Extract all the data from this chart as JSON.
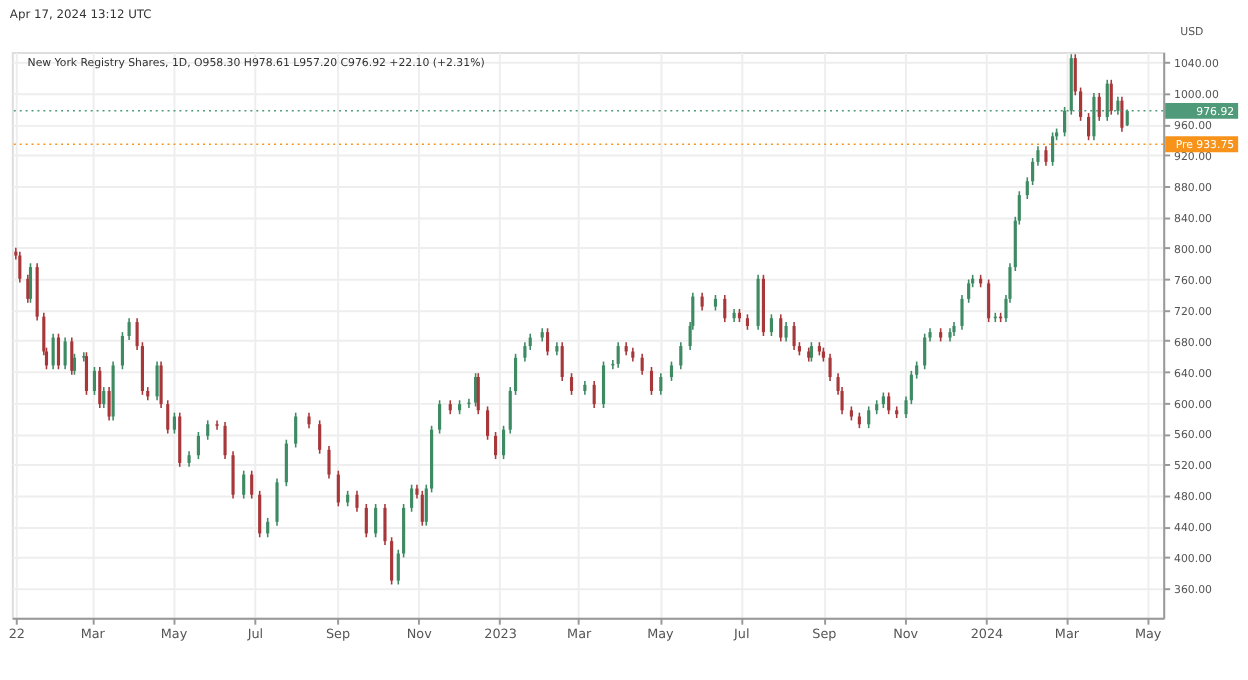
{
  "chart_data": {
    "type": "candlestick",
    "title": "New York Registry Shares, 1D, O958.30 H978.61 L957.20 C976.92 +22.10 (+2.31%)",
    "ylabel": "USD",
    "annotations": [
      "Apr 17, 2024 13:12 UTC"
    ],
    "x": [
      "2022-01-03",
      "2022-01-06",
      "2022-01-12",
      "2022-01-14",
      "2022-01-19",
      "2022-01-24",
      "2022-01-26",
      "2022-01-31",
      "2022-02-04",
      "2022-02-09",
      "2022-02-14",
      "2022-02-16",
      "2022-02-23",
      "2022-02-25",
      "2022-03-03",
      "2022-03-07",
      "2022-03-10",
      "2022-03-14",
      "2022-03-17",
      "2022-03-24",
      "2022-03-29",
      "2022-04-04",
      "2022-04-08",
      "2022-04-12",
      "2022-04-19",
      "2022-04-22",
      "2022-04-27",
      "2022-05-02",
      "2022-05-06",
      "2022-05-13",
      "2022-05-20",
      "2022-05-27",
      "2022-06-03",
      "2022-06-09",
      "2022-06-15",
      "2022-06-23",
      "2022-06-29",
      "2022-07-05",
      "2022-07-11",
      "2022-07-18",
      "2022-07-25",
      "2022-08-01",
      "2022-08-11",
      "2022-08-19",
      "2022-08-26",
      "2022-09-02",
      "2022-09-09",
      "2022-09-16",
      "2022-09-23",
      "2022-09-30",
      "2022-10-07",
      "2022-10-12",
      "2022-10-17",
      "2022-10-21",
      "2022-10-27",
      "2022-10-31",
      "2022-11-04",
      "2022-11-07",
      "2022-11-11",
      "2022-11-17",
      "2022-11-25",
      "2022-12-02",
      "2022-12-09",
      "2022-12-14",
      "2022-12-16",
      "2022-12-23",
      "2022-12-29",
      "2023-01-04",
      "2023-01-09",
      "2023-01-13",
      "2023-01-20",
      "2023-01-24",
      "2023-02-02",
      "2023-02-06",
      "2023-02-13",
      "2023-02-17",
      "2023-02-24",
      "2023-03-06",
      "2023-03-13",
      "2023-03-20",
      "2023-03-27",
      "2023-03-31",
      "2023-04-06",
      "2023-04-11",
      "2023-04-18",
      "2023-04-25",
      "2023-05-02",
      "2023-05-10",
      "2023-05-17",
      "2023-05-24",
      "2023-05-26",
      "2023-06-02",
      "2023-06-12",
      "2023-06-19",
      "2023-06-26",
      "2023-06-30",
      "2023-07-06",
      "2023-07-14",
      "2023-07-18",
      "2023-07-24",
      "2023-07-31",
      "2023-08-04",
      "2023-08-10",
      "2023-08-14",
      "2023-08-21",
      "2023-08-23",
      "2023-08-29",
      "2023-09-01",
      "2023-09-06",
      "2023-09-12",
      "2023-09-15",
      "2023-09-22",
      "2023-09-28",
      "2023-10-05",
      "2023-10-11",
      "2023-10-16",
      "2023-10-20",
      "2023-10-26",
      "2023-11-02",
      "2023-11-06",
      "2023-11-10",
      "2023-11-16",
      "2023-11-20",
      "2023-11-28",
      "2023-12-05",
      "2023-12-08",
      "2023-12-14",
      "2023-12-19",
      "2023-12-22",
      "2023-12-28",
      "2024-01-03",
      "2024-01-08",
      "2024-01-12",
      "2024-01-16",
      "2024-01-19",
      "2024-01-23",
      "2024-01-26",
      "2024-02-01",
      "2024-02-05",
      "2024-02-09",
      "2024-02-15",
      "2024-02-20",
      "2024-02-23",
      "2024-02-29",
      "2024-03-05",
      "2024-03-08",
      "2024-03-12",
      "2024-03-18",
      "2024-03-22",
      "2024-03-26",
      "2024-04-01",
      "2024-04-04",
      "2024-04-09",
      "2024-04-12",
      "2024-04-16"
    ],
    "ohlc": [
      [
        795,
        800,
        785,
        790
      ],
      [
        790,
        795,
        755,
        760
      ],
      [
        760,
        765,
        729,
        734
      ],
      [
        734,
        780,
        729,
        775
      ],
      [
        775,
        780,
        706,
        711
      ],
      [
        711,
        716,
        661,
        666
      ],
      [
        666,
        671,
        643,
        648
      ],
      [
        648,
        689,
        643,
        684
      ],
      [
        684,
        689,
        643,
        648
      ],
      [
        648,
        684,
        643,
        679
      ],
      [
        679,
        684,
        636,
        641
      ],
      [
        641,
        663,
        636,
        658
      ],
      [
        658,
        665,
        653,
        660
      ],
      [
        660,
        665,
        610,
        615
      ],
      [
        615,
        646,
        610,
        641
      ],
      [
        641,
        646,
        593,
        598
      ],
      [
        598,
        620,
        593,
        615
      ],
      [
        615,
        620,
        577,
        582
      ],
      [
        582,
        653,
        577,
        648
      ],
      [
        648,
        691,
        643,
        686
      ],
      [
        686,
        709,
        681,
        704
      ],
      [
        704,
        709,
        668,
        673
      ],
      [
        673,
        678,
        610,
        615
      ],
      [
        615,
        620,
        603,
        608
      ],
      [
        608,
        653,
        603,
        648
      ],
      [
        648,
        653,
        593,
        598
      ],
      [
        598,
        603,
        560,
        565
      ],
      [
        565,
        587,
        560,
        582
      ],
      [
        582,
        587,
        517,
        522
      ],
      [
        522,
        537,
        517,
        532
      ],
      [
        532,
        562,
        527,
        557
      ],
      [
        557,
        577,
        552,
        572
      ],
      [
        572,
        577,
        565,
        570
      ],
      [
        570,
        575,
        527,
        532
      ],
      [
        532,
        537,
        476,
        481
      ],
      [
        481,
        512,
        476,
        507
      ],
      [
        507,
        512,
        476,
        481
      ],
      [
        481,
        486,
        426,
        431
      ],
      [
        431,
        451,
        426,
        446
      ],
      [
        446,
        502,
        441,
        497
      ],
      [
        497,
        552,
        492,
        547
      ],
      [
        547,
        587,
        542,
        582
      ],
      [
        582,
        587,
        567,
        572
      ],
      [
        572,
        577,
        534,
        539
      ],
      [
        539,
        544,
        502,
        507
      ],
      [
        507,
        512,
        466,
        471
      ],
      [
        471,
        486,
        466,
        481
      ],
      [
        481,
        486,
        459,
        464
      ],
      [
        464,
        469,
        426,
        431
      ],
      [
        431,
        469,
        426,
        464
      ],
      [
        464,
        469,
        416,
        421
      ],
      [
        421,
        426,
        365,
        370
      ],
      [
        370,
        410,
        365,
        405
      ],
      [
        405,
        469,
        400,
        464
      ],
      [
        464,
        494,
        459,
        489
      ],
      [
        489,
        494,
        476,
        481
      ],
      [
        481,
        486,
        441,
        446
      ],
      [
        446,
        494,
        441,
        489
      ],
      [
        489,
        570,
        484,
        565
      ],
      [
        565,
        603,
        560,
        598
      ],
      [
        598,
        603,
        585,
        590
      ],
      [
        590,
        603,
        585,
        598
      ],
      [
        598,
        605,
        593,
        600
      ],
      [
        600,
        638,
        595,
        633
      ],
      [
        633,
        638,
        585,
        590
      ],
      [
        590,
        595,
        552,
        557
      ],
      [
        557,
        562,
        527,
        532
      ],
      [
        532,
        570,
        527,
        565
      ],
      [
        565,
        620,
        560,
        615
      ],
      [
        615,
        663,
        610,
        658
      ],
      [
        658,
        678,
        653,
        673
      ],
      [
        673,
        689,
        668,
        684
      ],
      [
        684,
        696,
        679,
        691
      ],
      [
        691,
        696,
        661,
        666
      ],
      [
        666,
        678,
        661,
        673
      ],
      [
        673,
        678,
        628,
        633
      ],
      [
        633,
        638,
        610,
        615
      ],
      [
        615,
        628,
        610,
        623
      ],
      [
        623,
        628,
        593,
        598
      ],
      [
        598,
        653,
        593,
        648
      ],
      [
        648,
        655,
        643,
        650
      ],
      [
        650,
        678,
        645,
        673
      ],
      [
        673,
        678,
        661,
        666
      ],
      [
        666,
        671,
        653,
        658
      ],
      [
        658,
        663,
        636,
        641
      ],
      [
        641,
        646,
        610,
        615
      ],
      [
        615,
        638,
        610,
        633
      ],
      [
        633,
        653,
        628,
        648
      ],
      [
        648,
        678,
        643,
        673
      ],
      [
        673,
        704,
        668,
        699
      ],
      [
        699,
        742,
        694,
        737
      ],
      [
        737,
        742,
        719,
        724
      ],
      [
        724,
        739,
        719,
        734
      ],
      [
        734,
        739,
        704,
        709
      ],
      [
        709,
        721,
        704,
        716
      ],
      [
        716,
        721,
        704,
        709
      ],
      [
        709,
        714,
        694,
        699
      ],
      [
        699,
        765,
        694,
        760
      ],
      [
        760,
        765,
        686,
        691
      ],
      [
        691,
        714,
        686,
        709
      ],
      [
        709,
        714,
        679,
        684
      ],
      [
        684,
        704,
        679,
        699
      ],
      [
        699,
        704,
        668,
        673
      ],
      [
        673,
        678,
        661,
        666
      ],
      [
        666,
        671,
        653,
        658
      ],
      [
        658,
        678,
        653,
        673
      ],
      [
        673,
        678,
        661,
        666
      ],
      [
        666,
        671,
        653,
        658
      ],
      [
        658,
        663,
        628,
        633
      ],
      [
        633,
        638,
        610,
        615
      ],
      [
        615,
        620,
        585,
        590
      ],
      [
        590,
        595,
        577,
        582
      ],
      [
        582,
        587,
        567,
        572
      ],
      [
        572,
        595,
        567,
        590
      ],
      [
        590,
        603,
        585,
        598
      ],
      [
        598,
        613,
        593,
        608
      ],
      [
        608,
        613,
        585,
        590
      ],
      [
        590,
        595,
        580,
        585
      ],
      [
        585,
        608,
        580,
        603
      ],
      [
        603,
        641,
        598,
        636
      ],
      [
        636,
        653,
        631,
        648
      ],
      [
        648,
        689,
        643,
        684
      ],
      [
        684,
        696,
        679,
        691
      ],
      [
        691,
        696,
        679,
        684
      ],
      [
        684,
        696,
        679,
        691
      ],
      [
        691,
        704,
        686,
        699
      ],
      [
        699,
        739,
        694,
        734
      ],
      [
        734,
        759,
        729,
        754
      ],
      [
        754,
        765,
        749,
        760
      ],
      [
        760,
        765,
        749,
        754
      ],
      [
        754,
        759,
        704,
        709
      ],
      [
        709,
        716,
        704,
        711
      ],
      [
        711,
        716,
        704,
        709
      ],
      [
        709,
        739,
        704,
        734
      ],
      [
        734,
        780,
        729,
        775
      ],
      [
        775,
        840,
        770,
        835
      ],
      [
        835,
        873,
        830,
        868
      ],
      [
        868,
        891,
        863,
        886
      ],
      [
        886,
        916,
        881,
        911
      ],
      [
        911,
        931,
        906,
        926
      ],
      [
        926,
        931,
        906,
        911
      ],
      [
        911,
        949,
        906,
        944
      ],
      [
        944,
        954,
        939,
        949
      ],
      [
        949,
        982,
        944,
        977
      ],
      [
        977,
        1050,
        972,
        1045
      ],
      [
        1045,
        1050,
        997,
        1002
      ],
      [
        1002,
        1007,
        964,
        969
      ],
      [
        969,
        974,
        939,
        944
      ],
      [
        944,
        1000,
        939,
        995
      ],
      [
        995,
        1000,
        964,
        969
      ],
      [
        969,
        1017,
        964,
        1012
      ],
      [
        1012,
        1017,
        972,
        977
      ],
      [
        977,
        995,
        972,
        990
      ],
      [
        990,
        995,
        950,
        955
      ],
      [
        958.3,
        978.61,
        957.2,
        976.92
      ]
    ],
    "xlim": [
      "2021-12-31",
      "2024-05-13"
    ],
    "xticks": [
      {
        "value": "2022-01-03",
        "label": "22"
      },
      {
        "value": "2022-03-01",
        "label": "Mar"
      },
      {
        "value": "2022-05-01",
        "label": "May"
      },
      {
        "value": "2022-07-01",
        "label": "Jul"
      },
      {
        "value": "2022-09-01",
        "label": "Sep"
      },
      {
        "value": "2022-11-01",
        "label": "Nov"
      },
      {
        "value": "2023-01-01",
        "label": "2023"
      },
      {
        "value": "2023-03-01",
        "label": "Mar"
      },
      {
        "value": "2023-05-01",
        "label": "May"
      },
      {
        "value": "2023-07-01",
        "label": "Jul"
      },
      {
        "value": "2023-09-01",
        "label": "Sep"
      },
      {
        "value": "2023-11-01",
        "label": "Nov"
      },
      {
        "value": "2024-01-01",
        "label": "2024"
      },
      {
        "value": "2024-03-01",
        "label": "Mar"
      },
      {
        "value": "2024-05-01",
        "label": "May"
      }
    ],
    "ylim": [
      322,
      1053
    ],
    "yticks": [
      {
        "value": 360,
        "label": "360.00"
      },
      {
        "value": 400,
        "label": "400.00"
      },
      {
        "value": 440,
        "label": "440.00"
      },
      {
        "value": 480,
        "label": "480.00"
      },
      {
        "value": 520,
        "label": "520.00"
      },
      {
        "value": 560,
        "label": "560.00"
      },
      {
        "value": 600,
        "label": "600.00"
      },
      {
        "value": 640,
        "label": "640.00"
      },
      {
        "value": 680,
        "label": "680.00"
      },
      {
        "value": 720,
        "label": "720.00"
      },
      {
        "value": 760,
        "label": "760.00"
      },
      {
        "value": 800,
        "label": "800.00"
      },
      {
        "value": 840,
        "label": "840.00"
      },
      {
        "value": 880,
        "label": "880.00"
      },
      {
        "value": 920,
        "label": "920.00"
      },
      {
        "value": 960,
        "label": "960.00"
      },
      {
        "value": 1000,
        "label": "1000.00"
      },
      {
        "value": 1040,
        "label": "1040.00"
      }
    ],
    "ref_lines": [
      {
        "axis": "y",
        "value": 976.92,
        "label": "976.92",
        "color": "#4f9a78",
        "line_style": "dotted"
      },
      {
        "axis": "y",
        "value": 933.75,
        "label": "Pre 933.75",
        "color": "#f7931a",
        "line_style": "dotted"
      }
    ],
    "grid": true
  }
}
